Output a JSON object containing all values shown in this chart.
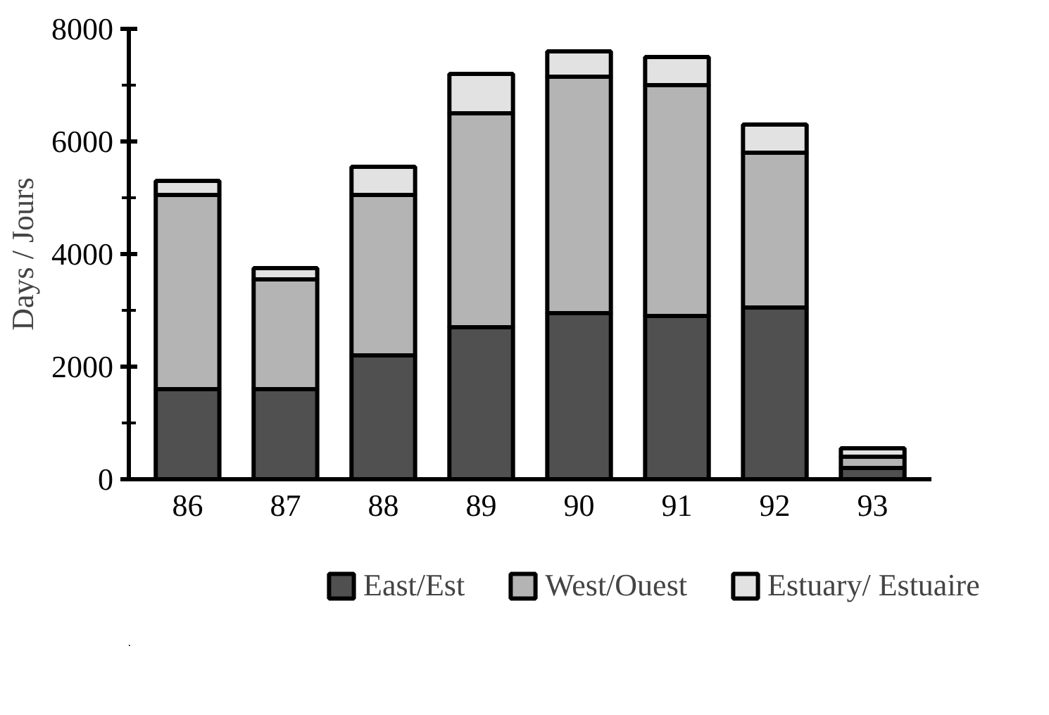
{
  "chart_data": {
    "type": "bar",
    "stacked": true,
    "ylabel": "Days / Jours",
    "categories": [
      "86",
      "87",
      "88",
      "89",
      "90",
      "91",
      "92",
      "93"
    ],
    "series": [
      {
        "name": "East/Est",
        "color": "#505050",
        "values": [
          1600,
          1600,
          2200,
          2700,
          2950,
          2900,
          3050,
          200
        ]
      },
      {
        "name": "West/Ouest",
        "color": "#b4b4b4",
        "values": [
          3450,
          1950,
          2850,
          3800,
          4200,
          4100,
          2750,
          200
        ]
      },
      {
        "name": "Estuary/ Estuaire",
        "color": "#e2e2e2",
        "values": [
          250,
          200,
          500,
          700,
          450,
          500,
          500,
          150
        ]
      }
    ],
    "ylim": [
      0,
      8000
    ],
    "yticks": [
      0,
      2000,
      4000,
      6000,
      8000
    ],
    "grid": false,
    "legend": "bottom"
  }
}
